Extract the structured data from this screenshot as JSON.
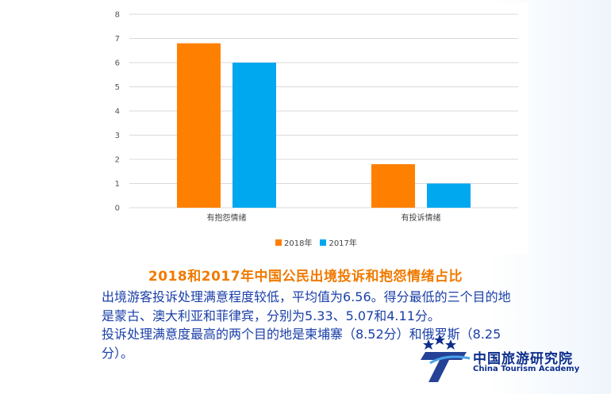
{
  "chart_data": {
    "type": "bar",
    "categories": [
      "有抱怨情绪",
      "有投诉情绪"
    ],
    "series": [
      {
        "name": "2018年",
        "values": [
          6.8,
          1.8
        ],
        "color": "#ff8000"
      },
      {
        "name": "2017年",
        "values": [
          6.0,
          1.0
        ],
        "color": "#00a8f0"
      }
    ],
    "yticks": [
      "0",
      "1",
      "2",
      "3",
      "4",
      "5",
      "6",
      "7",
      "8"
    ],
    "ylim": [
      0,
      8
    ],
    "grid": true,
    "legend_position": "bottom"
  },
  "caption": "2018和2017年中国公民出境投诉和抱怨情绪占比",
  "paragraphs": [
    "出境游客投诉处理满意程度较低，平均值为6.56。得分最低的三个目的地是蒙古、澳大利亚和菲律宾，分别为5.33、5.07和4.11分。",
    "投诉处理满意度最高的两个目的地是柬埔寨（8.52分）和俄罗斯（8.25分）。"
  ],
  "logo": {
    "name_cn": "中国旅游研究院",
    "name_en": "China Tourism Academy",
    "color": "#0d2e8c"
  }
}
